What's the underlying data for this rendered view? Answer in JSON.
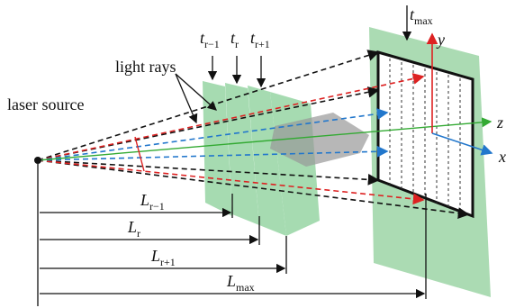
{
  "labels": {
    "source": "laser source",
    "rays": "light rays"
  },
  "planes": [
    {
      "base": "t",
      "sub": "r−1"
    },
    {
      "base": "t",
      "sub": "r"
    },
    {
      "base": "t",
      "sub": "r+1"
    },
    {
      "base": "t",
      "sub": "max"
    }
  ],
  "axes": {
    "y": "y",
    "z": "z",
    "x": "x"
  },
  "distances": [
    {
      "base": "L",
      "sub": "r−1"
    },
    {
      "base": "L",
      "sub": "r"
    },
    {
      "base": "L",
      "sub": "r+1"
    },
    {
      "base": "L",
      "sub": "max"
    }
  ]
}
